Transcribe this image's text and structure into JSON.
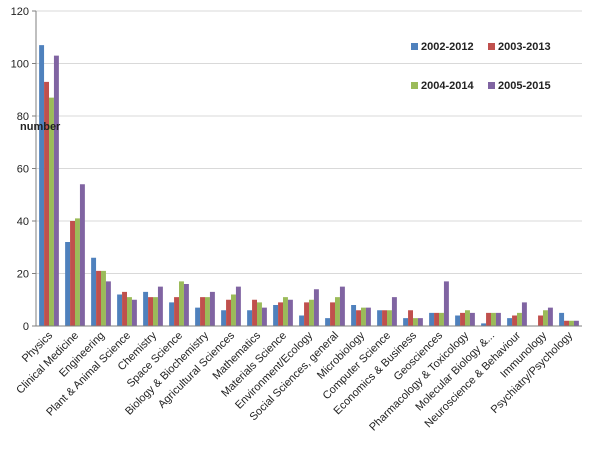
{
  "chart_data": {
    "type": "bar",
    "ylabel": "number",
    "ylim": [
      0,
      120
    ],
    "yticks": [
      "0",
      "20",
      "40",
      "60",
      "80",
      "100",
      "120"
    ],
    "grid": "horizontal",
    "legend_position": "top-right",
    "categories": [
      "Physics",
      "Clinical Medicine",
      "Engineering",
      "Plant & Animal Science",
      "Chemistry",
      "Space Science",
      "Biology & Biochemistry",
      "Agricultural Sciences",
      "Mathematics",
      "Materials Science",
      "Environment/Ecology",
      "Social Sciences, general",
      "Microbiology",
      "Computer Science",
      "Economics & Business",
      "Geosciences",
      "Pharmacology & Toxicology",
      "Molecular Biology &...",
      "Neuroscience & Behaviour",
      "Immunology",
      "Psychiatry/Psychology"
    ],
    "series": [
      {
        "name": "2002-2012",
        "color": "#4f81bd",
        "values": [
          107,
          32,
          26,
          12,
          13,
          9,
          7,
          6,
          6,
          8,
          4,
          3,
          8,
          6,
          3,
          5,
          4,
          1,
          3,
          0,
          5
        ]
      },
      {
        "name": "2003-2013",
        "color": "#c0504d",
        "values": [
          93,
          40,
          21,
          13,
          11,
          11,
          11,
          10,
          10,
          9,
          9,
          9,
          6,
          6,
          6,
          5,
          5,
          5,
          4,
          4,
          2
        ]
      },
      {
        "name": "2004-2014",
        "color": "#9bbb59",
        "values": [
          87,
          41,
          21,
          11,
          11,
          17,
          11,
          12,
          9,
          11,
          10,
          11,
          7,
          6,
          3,
          5,
          6,
          5,
          5,
          6,
          2
        ]
      },
      {
        "name": "2005-2015",
        "color": "#8064a2",
        "values": [
          103,
          54,
          17,
          10,
          15,
          16,
          13,
          15,
          7,
          10,
          14,
          15,
          7,
          11,
          3,
          17,
          5,
          5,
          9,
          7,
          2
        ]
      }
    ]
  }
}
